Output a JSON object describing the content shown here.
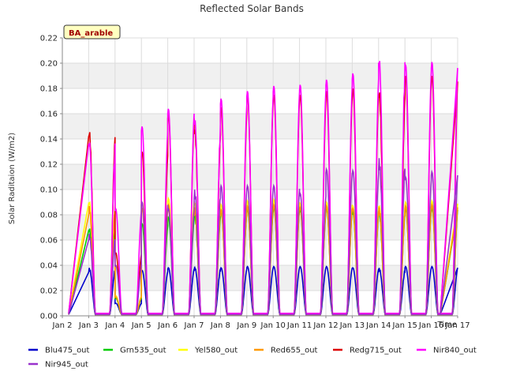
{
  "chart_data": {
    "type": "line",
    "title": "Reflected Solar Bands",
    "xlabel": "Time",
    "ylabel": "Solar Raditaion (W/m2)",
    "badge": "BA_arable",
    "grid": true,
    "legend_position": "bottom",
    "ylim": [
      0,
      0.22
    ],
    "xlim": [
      "Jan 2",
      "Jan 17"
    ],
    "x_ticks": [
      "Jan 2",
      "Jan 3",
      "Jan 4",
      "Jan 5",
      "Jan 6",
      "Jan 7",
      "Jan 8",
      "Jan 9",
      "Jan 10",
      "Jan 11",
      "Jan 12",
      "Jan 13",
      "Jan 14",
      "Jan 15",
      "Jan 16",
      "Jan 17"
    ],
    "y_ticks": [
      "0.00",
      "0.02",
      "0.04",
      "0.06",
      "0.08",
      "0.10",
      "0.12",
      "0.14",
      "0.16",
      "0.18",
      "0.20",
      "0.22"
    ],
    "days": [
      "Jan 3",
      "Jan 4",
      "Jan 5",
      "Jan 6",
      "Jan 7",
      "Jan 8",
      "Jan 9",
      "Jan 10",
      "Jan 11",
      "Jan 12",
      "Jan 13",
      "Jan 14",
      "Jan 15",
      "Jan 16"
    ],
    "series": [
      {
        "name": "Blu475_out",
        "color": "#0000cc",
        "baseline": 0.001,
        "daily_peaks": [
          0.038,
          0.01,
          0.036,
          0.038,
          0.039,
          0.038,
          0.039,
          0.039,
          0.039,
          0.039,
          0.038,
          0.038,
          0.039,
          0.039
        ]
      },
      {
        "name": "Grn535_out",
        "color": "#00cc00",
        "baseline": 0.001,
        "daily_peaks": [
          0.07,
          0.014,
          0.073,
          0.078,
          0.082,
          0.083,
          0.085,
          0.086,
          0.084,
          0.086,
          0.082,
          0.084,
          0.085,
          0.086
        ]
      },
      {
        "name": "Yel580_out",
        "color": "#ffff00",
        "baseline": 0.001,
        "daily_peaks": [
          0.092,
          0.016,
          0.09,
          0.093,
          0.091,
          0.088,
          0.091,
          0.092,
          0.089,
          0.09,
          0.087,
          0.089,
          0.09,
          0.091
        ]
      },
      {
        "name": "Red655_out",
        "color": "#ff9900",
        "baseline": 0.001,
        "daily_peaks": [
          0.087,
          0.015,
          0.085,
          0.088,
          0.086,
          0.084,
          0.087,
          0.088,
          0.086,
          0.087,
          0.085,
          0.086,
          0.087,
          0.088
        ]
      },
      {
        "name": "Redg715_out",
        "color": "#dd0000",
        "baseline": 0.002,
        "daily_peaks": [
          0.148,
          0.05,
          0.13,
          0.16,
          0.15,
          0.165,
          0.175,
          0.175,
          0.175,
          0.178,
          0.18,
          0.18,
          0.19,
          0.19
        ]
      },
      {
        "name": "Nir840_out",
        "color": "#ff00ff",
        "baseline": 0.002,
        "daily_peaks": [
          0.14,
          0.085,
          0.15,
          0.164,
          0.158,
          0.172,
          0.178,
          0.182,
          0.183,
          0.187,
          0.192,
          0.206,
          0.199,
          0.201
        ]
      },
      {
        "name": "Nir945_out",
        "color": "#9933cc",
        "baseline": 0.001,
        "daily_peaks": [
          0.065,
          0.04,
          0.09,
          0.085,
          0.1,
          0.103,
          0.103,
          0.103,
          0.097,
          0.116,
          0.115,
          0.125,
          0.11,
          0.114
        ]
      }
    ]
  }
}
